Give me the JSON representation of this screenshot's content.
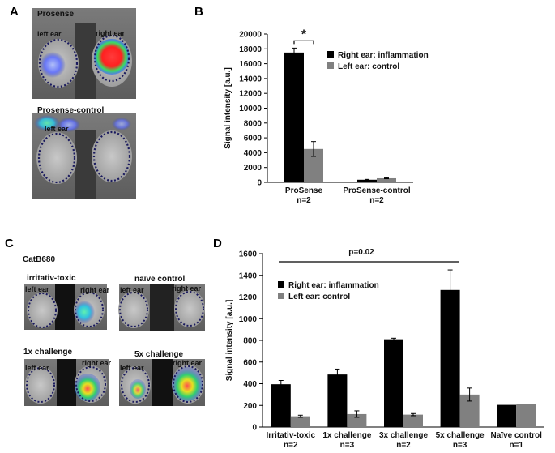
{
  "panels": {
    "A": {
      "letter": "A",
      "top_title": "Prosense",
      "top_left_label": "left ear",
      "top_right_label": "right ear",
      "bottom_title": "Prosense-control",
      "bottom_left_label": "left ear"
    },
    "B": {
      "letter": "B",
      "sig_star": "*"
    },
    "C": {
      "letter": "C",
      "header": "CatB680",
      "tl_title": "irritativ-toxic",
      "tr_title": "naïve  control",
      "bl_title": "1x challenge",
      "br_title": "5x challenge",
      "left_ear": "left ear",
      "right_ear": "right ear"
    },
    "D": {
      "letter": "D",
      "pvalue": "p=0.02"
    }
  },
  "chart_data": [
    {
      "id": "B",
      "type": "bar",
      "ylabel": "Signal  intensity [a.u.]",
      "ylim": [
        0,
        20000
      ],
      "yticks": [
        "0",
        "2000",
        "4000",
        "6000",
        "8000",
        "10000",
        "12000",
        "14000",
        "16000",
        "18000",
        "20000"
      ],
      "categories": [
        {
          "line1": "ProSense",
          "line2": "n=2"
        },
        {
          "line1": "ProSense-control",
          "line2": "n=2"
        }
      ],
      "series": [
        {
          "name": "Right ear: inflammation",
          "color": "#000000",
          "values": [
            17500,
            350
          ],
          "errors": [
            600,
            50
          ]
        },
        {
          "name": "Left ear: control",
          "color": "#808080",
          "values": [
            4500,
            550
          ],
          "errors": [
            1000,
            60
          ]
        }
      ]
    },
    {
      "id": "D",
      "type": "bar",
      "ylabel": "Signal  intensity [a.u.]",
      "ylim": [
        0,
        1600
      ],
      "yticks": [
        "0",
        "200",
        "400",
        "600",
        "800",
        "1000",
        "1200",
        "1400",
        "1600"
      ],
      "categories": [
        {
          "line1": "Irritativ-toxic",
          "line2": "n=2"
        },
        {
          "line1": "1x challenge",
          "line2": "n=3"
        },
        {
          "line1": "3x challenge",
          "line2": "n=2"
        },
        {
          "line1": "5x challenge",
          "line2": "n=3"
        },
        {
          "line1": "Naïve  control",
          "line2": "n=1"
        }
      ],
      "series": [
        {
          "name": "Right ear: inflammation",
          "color": "#000000",
          "values": [
            395,
            485,
            810,
            1265,
            205
          ],
          "errors": [
            35,
            50,
            10,
            185,
            0
          ]
        },
        {
          "name": "Left ear: control",
          "color": "#808080",
          "values": [
            100,
            120,
            115,
            300,
            210
          ],
          "errors": [
            10,
            30,
            10,
            60,
            0
          ]
        }
      ]
    }
  ]
}
